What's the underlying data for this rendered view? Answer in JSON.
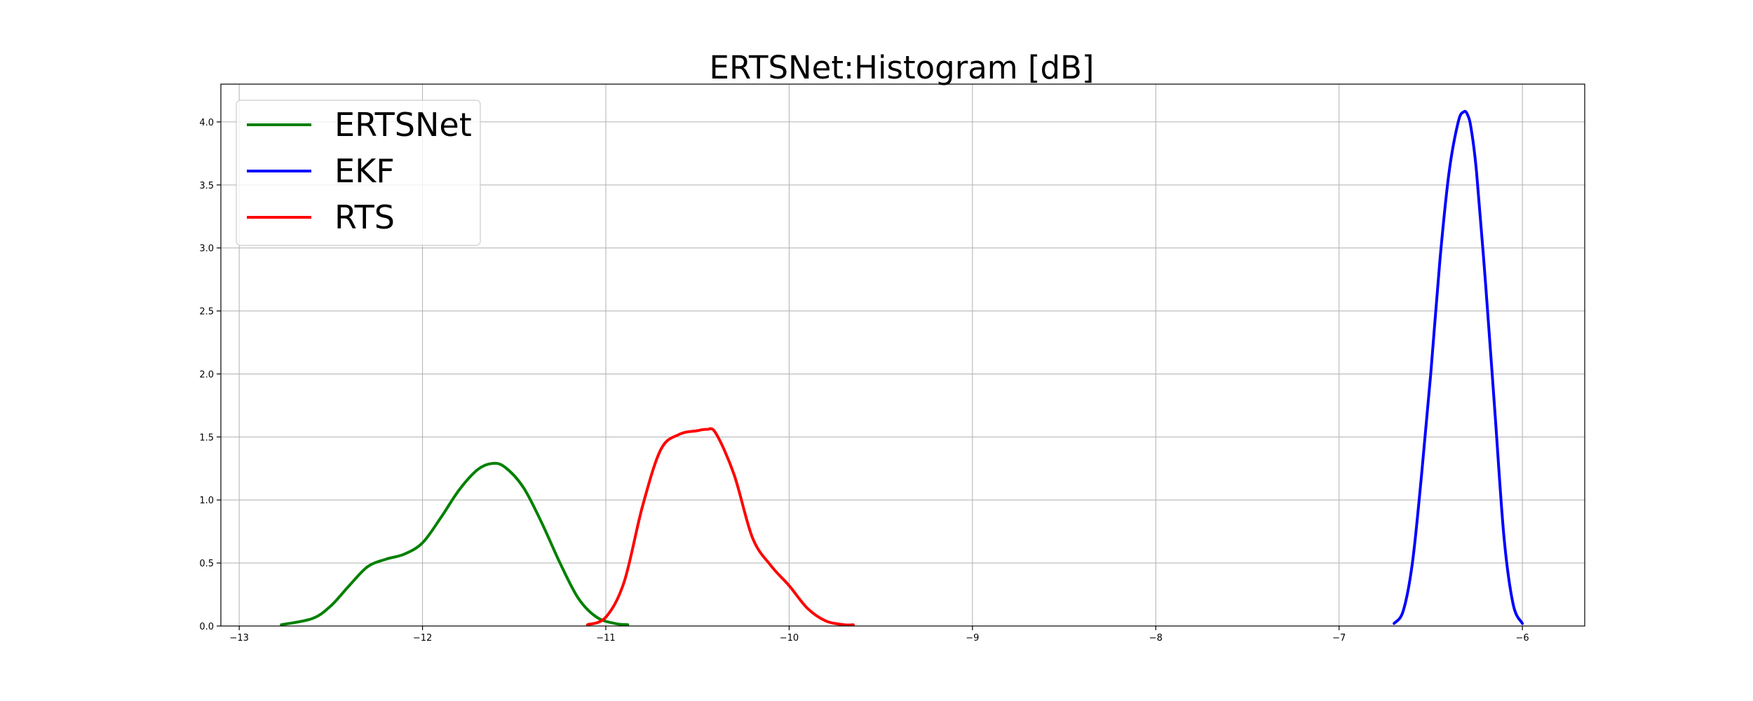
{
  "chart_data": {
    "type": "line",
    "title": "ERTSNet:Histogram [dB]",
    "xlabel": "",
    "ylabel": "",
    "xlim": [
      -13.1,
      -5.66
    ],
    "ylim": [
      0,
      4.3
    ],
    "x_ticks": [
      -13,
      -12,
      -11,
      -10,
      -9,
      -8,
      -7,
      -6
    ],
    "x_tick_labels": [
      "−13",
      "−12",
      "−11",
      "−10",
      "−9",
      "−8",
      "−7",
      "−6"
    ],
    "y_ticks": [
      0.0,
      0.5,
      1.0,
      1.5,
      2.0,
      2.5,
      3.0,
      3.5,
      4.0
    ],
    "y_tick_labels": [
      "0.0",
      "0.5",
      "1.0",
      "1.5",
      "2.0",
      "2.5",
      "3.0",
      "3.5",
      "4.0"
    ],
    "grid": true,
    "legend_position": "top-left",
    "series": [
      {
        "name": "ERTSNet",
        "color": "#008000",
        "x": [
          -12.77,
          -12.6,
          -12.5,
          -12.4,
          -12.3,
          -12.2,
          -12.1,
          -12.0,
          -11.9,
          -11.8,
          -11.7,
          -11.62,
          -11.55,
          -11.45,
          -11.35,
          -11.25,
          -11.15,
          -11.05,
          -10.95,
          -10.88
        ],
        "y": [
          0.01,
          0.06,
          0.16,
          0.32,
          0.47,
          0.53,
          0.57,
          0.66,
          0.86,
          1.08,
          1.24,
          1.29,
          1.26,
          1.1,
          0.82,
          0.5,
          0.22,
          0.07,
          0.02,
          0.01
        ]
      },
      {
        "name": "EKF",
        "color": "#0000ff",
        "x": [
          -6.7,
          -6.65,
          -6.6,
          -6.55,
          -6.5,
          -6.45,
          -6.4,
          -6.35,
          -6.32,
          -6.3,
          -6.28,
          -6.25,
          -6.2,
          -6.15,
          -6.1,
          -6.05,
          -6.0
        ],
        "y": [
          0.02,
          0.12,
          0.5,
          1.2,
          2.0,
          2.9,
          3.6,
          4.0,
          4.08,
          4.06,
          3.95,
          3.6,
          2.7,
          1.7,
          0.7,
          0.17,
          0.02
        ]
      },
      {
        "name": "RTS",
        "color": "#ff0000",
        "x": [
          -11.1,
          -11.0,
          -10.9,
          -10.8,
          -10.7,
          -10.6,
          -10.5,
          -10.45,
          -10.4,
          -10.3,
          -10.2,
          -10.1,
          -10.0,
          -9.9,
          -9.8,
          -9.7,
          -9.65
        ],
        "y": [
          0.01,
          0.07,
          0.35,
          0.95,
          1.4,
          1.52,
          1.55,
          1.56,
          1.53,
          1.2,
          0.7,
          0.48,
          0.32,
          0.14,
          0.04,
          0.01,
          0.01
        ]
      }
    ]
  }
}
